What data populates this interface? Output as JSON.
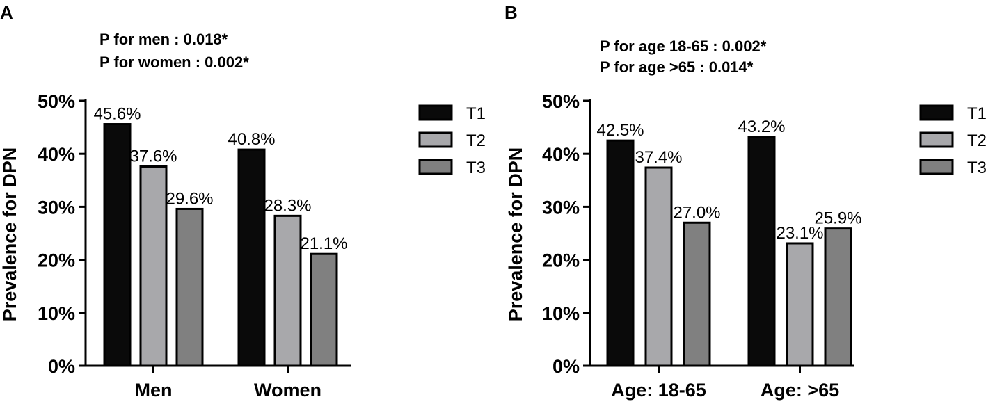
{
  "colors": {
    "T1": "#0a0a0a",
    "T2": "#a8a8ab",
    "T3": "#808080",
    "stroke": "#000000"
  },
  "chart_data": [
    {
      "type": "bar",
      "panel": "A",
      "annotations": [
        "P for men : 0.018*",
        "P for women : 0.002*"
      ],
      "categories": [
        "Men",
        "Women"
      ],
      "series": [
        {
          "name": "T1",
          "values": [
            45.6,
            40.8
          ]
        },
        {
          "name": "T2",
          "values": [
            37.6,
            28.3
          ]
        },
        {
          "name": "T3",
          "values": [
            29.6,
            21.1
          ]
        }
      ],
      "value_labels": [
        [
          "45.6%",
          "40.8%"
        ],
        [
          "37.6%",
          "28.3%"
        ],
        [
          "29.6%",
          "21.1%"
        ]
      ],
      "ylabel": "Prevalence for DPN",
      "ylim": [
        0,
        50
      ],
      "yticks": [
        "0%",
        "10%",
        "20%",
        "30%",
        "40%",
        "50%"
      ],
      "legend": "right"
    },
    {
      "type": "bar",
      "panel": "B",
      "annotations": [
        "P for age 18-65 : 0.002*",
        "P for age >65 : 0.014*"
      ],
      "categories": [
        "Age: 18-65",
        "Age: >65"
      ],
      "series": [
        {
          "name": "T1",
          "values": [
            42.5,
            43.2
          ]
        },
        {
          "name": "T2",
          "values": [
            37.4,
            23.1
          ]
        },
        {
          "name": "T3",
          "values": [
            27.0,
            25.9
          ]
        }
      ],
      "value_labels": [
        [
          "42.5%",
          "43.2%"
        ],
        [
          "37.4%",
          "23.1%"
        ],
        [
          "27.0%",
          "25.9%"
        ]
      ],
      "ylabel": "Prevalence for DPN",
      "ylim": [
        0,
        50
      ],
      "yticks": [
        "0%",
        "10%",
        "20%",
        "30%",
        "40%",
        "50%"
      ],
      "legend": "right"
    }
  ]
}
